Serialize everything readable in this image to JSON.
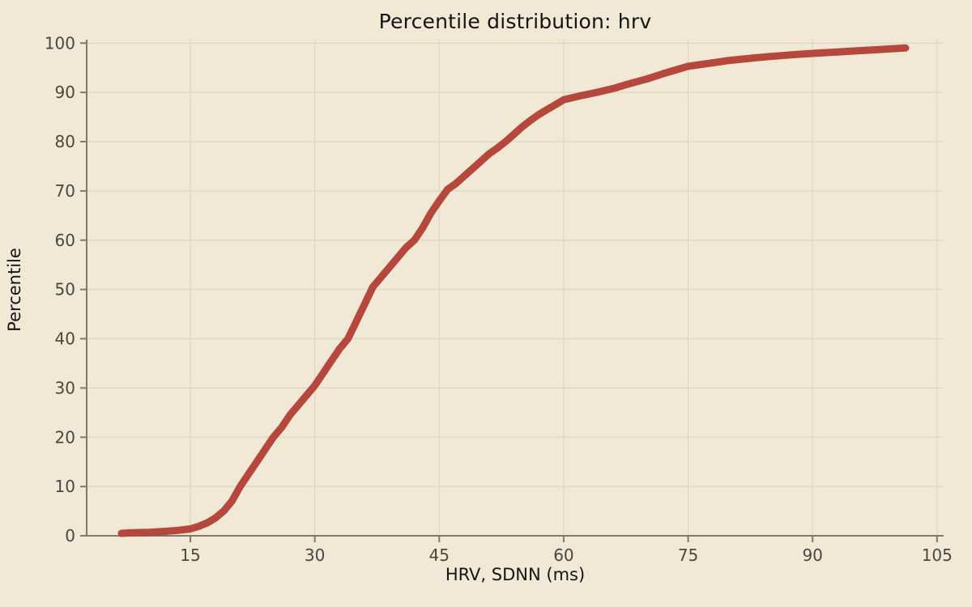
{
  "title": "Percentile distribution: hrv",
  "colors": {
    "background": "#f2e8d6",
    "curve": "#b5473c",
    "grid": "#ddd5c2",
    "spine": "#7e7a70",
    "tick_label": "#4a4742",
    "text": "#141414"
  },
  "chart_data": {
    "type": "line",
    "title": "Percentile distribution: hrv",
    "xlabel": "HRV, SDNN (ms)",
    "ylabel": "Percentile",
    "x_ticks": [
      15,
      30,
      45,
      60,
      75,
      90,
      105
    ],
    "y_ticks": [
      0,
      10,
      20,
      30,
      40,
      50,
      60,
      70,
      80,
      90,
      100
    ],
    "xlim": [
      2.5,
      105.8
    ],
    "ylim": [
      0,
      100.7
    ],
    "grid": true,
    "legend_position": "none",
    "line_width": 9,
    "series": [
      {
        "name": "hrv-percentile-curve",
        "points": [
          [
            6.7,
            0.5
          ],
          [
            8,
            0.6
          ],
          [
            10,
            0.7
          ],
          [
            12,
            0.9
          ],
          [
            13.5,
            1.1
          ],
          [
            15,
            1.4
          ],
          [
            16,
            1.9
          ],
          [
            17,
            2.6
          ],
          [
            18,
            3.6
          ],
          [
            19,
            5.0
          ],
          [
            20,
            7.0
          ],
          [
            21,
            10.0
          ],
          [
            22,
            12.5
          ],
          [
            23,
            15.0
          ],
          [
            24,
            17.5
          ],
          [
            25,
            20.0
          ],
          [
            26,
            22.0
          ],
          [
            27,
            24.5
          ],
          [
            28,
            26.5
          ],
          [
            29,
            28.5
          ],
          [
            30,
            30.5
          ],
          [
            31,
            33.0
          ],
          [
            32,
            35.5
          ],
          [
            33,
            38.0
          ],
          [
            34,
            40.0
          ],
          [
            35,
            43.5
          ],
          [
            36,
            47.0
          ],
          [
            37,
            50.5
          ],
          [
            38,
            52.5
          ],
          [
            39,
            54.5
          ],
          [
            40,
            56.5
          ],
          [
            41,
            58.5
          ],
          [
            42,
            60.0
          ],
          [
            43,
            62.5
          ],
          [
            44,
            65.5
          ],
          [
            45,
            68.0
          ],
          [
            46,
            70.3
          ],
          [
            47,
            71.5
          ],
          [
            48,
            73.0
          ],
          [
            49,
            74.5
          ],
          [
            50,
            76.0
          ],
          [
            51,
            77.5
          ],
          [
            52,
            78.7
          ],
          [
            53,
            80.0
          ],
          [
            54,
            81.5
          ],
          [
            55,
            83.0
          ],
          [
            56,
            84.3
          ],
          [
            57,
            85.5
          ],
          [
            58,
            86.5
          ],
          [
            59,
            87.5
          ],
          [
            60,
            88.5
          ],
          [
            62,
            89.3
          ],
          [
            64,
            90.0
          ],
          [
            66,
            90.8
          ],
          [
            68,
            91.8
          ],
          [
            70,
            92.7
          ],
          [
            72,
            93.8
          ],
          [
            75,
            95.3
          ],
          [
            78,
            96.0
          ],
          [
            80,
            96.5
          ],
          [
            83,
            97.0
          ],
          [
            85,
            97.3
          ],
          [
            88,
            97.7
          ],
          [
            90,
            97.9
          ],
          [
            93,
            98.2
          ],
          [
            95,
            98.4
          ],
          [
            98,
            98.7
          ],
          [
            100,
            98.9
          ],
          [
            101.2,
            99.0
          ]
        ]
      }
    ]
  }
}
